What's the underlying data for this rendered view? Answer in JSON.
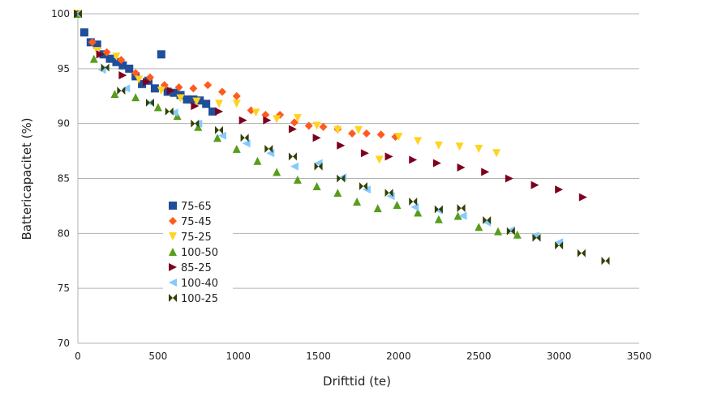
{
  "chart_data": {
    "type": "scatter",
    "title": "",
    "xlabel": "Drifttid (te)",
    "ylabel": "Battericapacitet (%)",
    "xlim": [
      0,
      3500
    ],
    "ylim": [
      70,
      100
    ],
    "xticks": [
      0,
      500,
      1000,
      1500,
      2000,
      2500,
      3000,
      3500
    ],
    "yticks": [
      70,
      75,
      80,
      85,
      90,
      95,
      100
    ],
    "grid": "horizontal",
    "legend_position": "inside-left",
    "series": [
      {
        "name": "75-65",
        "color": "#1f4e9a",
        "marker": "square",
        "x": [
          0,
          40,
          80,
          120,
          160,
          200,
          240,
          280,
          320,
          360,
          400,
          440,
          480,
          520,
          560,
          600,
          640,
          680,
          720,
          760,
          800,
          840
        ],
        "y": [
          100,
          98.3,
          97.4,
          97.2,
          96.3,
          95.9,
          95.6,
          95.3,
          95.0,
          94.3,
          93.6,
          93.9,
          93.2,
          96.3,
          92.9,
          92.8,
          92.6,
          92.2,
          92.2,
          92.1,
          91.8,
          91.1
        ]
      },
      {
        "name": "75-45",
        "color": "#ff5b1f",
        "marker": "diamond",
        "x": [
          0,
          90,
          180,
          270,
          360,
          450,
          540,
          630,
          720,
          810,
          900,
          990,
          1080,
          1170,
          1260,
          1350,
          1440,
          1530,
          1620,
          1710,
          1800,
          1890,
          1980
        ],
        "y": [
          100,
          97.4,
          96.5,
          95.8,
          94.6,
          94.2,
          93.5,
          93.3,
          93.2,
          93.5,
          92.9,
          92.5,
          91.2,
          90.8,
          90.8,
          90.1,
          89.8,
          89.7,
          89.5,
          89.1,
          89.1,
          89.0,
          88.8
        ]
      },
      {
        "name": "75-25",
        "color": "#ffd320",
        "marker": "triangle-down",
        "x": [
          0,
          120,
          240,
          380,
          520,
          640,
          740,
          880,
          990,
          1110,
          1240,
          1370,
          1490,
          1620,
          1750,
          1880,
          2000,
          2120,
          2250,
          2380,
          2500,
          2610
        ],
        "y": [
          100,
          96.6,
          96.1,
          94.0,
          93.0,
          92.3,
          92.0,
          91.8,
          91.8,
          91.0,
          90.4,
          90.5,
          89.8,
          89.4,
          89.4,
          86.7,
          88.8,
          88.4,
          88.0,
          87.9,
          87.7,
          87.3
        ]
      },
      {
        "name": "100-50",
        "color": "#579d1c",
        "marker": "triangle-up",
        "x": [
          0,
          100,
          230,
          360,
          500,
          620,
          750,
          870,
          990,
          1120,
          1240,
          1370,
          1490,
          1620,
          1740,
          1870,
          1990,
          2120,
          2250,
          2370,
          2500,
          2620,
          2740
        ],
        "y": [
          100,
          95.9,
          92.7,
          92.4,
          91.5,
          90.7,
          89.7,
          88.7,
          87.7,
          86.6,
          85.6,
          84.9,
          84.3,
          83.7,
          82.9,
          82.3,
          82.6,
          81.9,
          81.3,
          81.6,
          80.6,
          80.2,
          79.9
        ]
      },
      {
        "name": "85-25",
        "color": "#7e0021",
        "marker": "triangle-right",
        "x": [
          0,
          140,
          280,
          430,
          580,
          730,
          880,
          1030,
          1180,
          1340,
          1490,
          1640,
          1790,
          1940,
          2090,
          2240,
          2390,
          2540,
          2690,
          2850,
          3000,
          3150
        ],
        "y": [
          100,
          96.3,
          94.4,
          93.8,
          93.0,
          91.6,
          91.1,
          90.3,
          90.3,
          89.5,
          88.7,
          88.0,
          87.3,
          87.0,
          86.7,
          86.4,
          86.0,
          85.6,
          85.0,
          84.4,
          84.0,
          83.3
        ]
      },
      {
        "name": "100-40",
        "color": "#83caff",
        "marker": "triangle-left",
        "x": [
          0,
          150,
          300,
          450,
          600,
          750,
          900,
          1050,
          1200,
          1350,
          1500,
          1650,
          1800,
          1950,
          2100,
          2250,
          2400,
          2550,
          2700,
          2850,
          3000
        ],
        "y": [
          100,
          94.9,
          93.2,
          91.9,
          91.0,
          90.0,
          88.9,
          88.2,
          87.3,
          86.1,
          86.4,
          85.1,
          84.0,
          83.4,
          82.4,
          82.1,
          81.6,
          81.0,
          80.3,
          79.8,
          79.2
        ]
      },
      {
        "name": "100-25",
        "color": "#314004",
        "marker": "bowtie",
        "x": [
          0,
          170,
          270,
          450,
          570,
          730,
          880,
          1040,
          1190,
          1340,
          1500,
          1640,
          1780,
          1940,
          2090,
          2250,
          2390,
          2550,
          2700,
          2860,
          3000,
          3140,
          3290
        ],
        "y": [
          100,
          95.1,
          93.0,
          91.9,
          91.1,
          90.0,
          89.4,
          88.7,
          87.7,
          87.0,
          86.1,
          85.0,
          84.3,
          83.7,
          82.9,
          82.2,
          82.3,
          81.2,
          80.2,
          79.6,
          78.9,
          78.2,
          77.5
        ]
      }
    ]
  }
}
